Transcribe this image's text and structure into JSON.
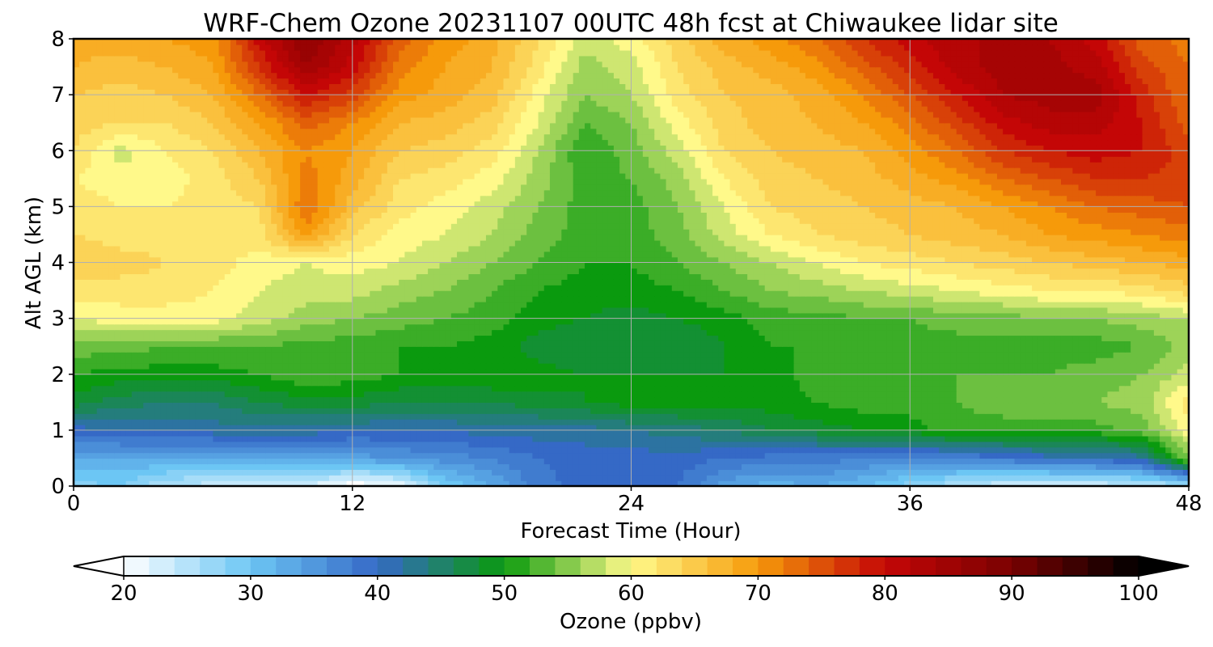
{
  "chart_data": {
    "type": "heatmap",
    "title": "WRF-Chem Ozone  20231107 00UTC 48h fcst at Chiwaukee lidar site",
    "xlabel": "Forecast Time (Hour)",
    "ylabel": "Alt AGL (km)",
    "xlim": [
      0,
      48
    ],
    "ylim": [
      0,
      8
    ],
    "x_ticks": [
      0,
      12,
      24,
      36,
      48
    ],
    "y_ticks": [
      0,
      1,
      2,
      3,
      4,
      5,
      6,
      7,
      8
    ],
    "grid": true,
    "colorbar": {
      "label": "Ozone  (ppbv)",
      "range": [
        20,
        100
      ],
      "ticks": [
        20,
        30,
        40,
        50,
        60,
        70,
        80,
        90,
        100
      ],
      "extend": "both",
      "colors": {
        "20": "#ffffff",
        "30": "#6cc6f4",
        "40": "#3569c6",
        "50": "#0a9a0e",
        "60": "#fff98a",
        "70": "#f69a0a",
        "80": "#c40606",
        "90": "#7a0101",
        "100": "#000000"
      }
    },
    "hours": [
      0,
      2,
      4,
      6,
      8,
      10,
      12,
      14,
      16,
      18,
      20,
      22,
      24,
      26,
      28,
      30,
      32,
      34,
      36,
      38,
      40,
      42,
      44,
      46,
      48
    ],
    "altitudes_km": [
      0,
      0.5,
      1,
      1.5,
      2,
      2.5,
      3,
      3.5,
      4,
      4.5,
      5,
      5.5,
      6,
      6.5,
      7,
      7.5,
      8
    ],
    "ozone_ppbv": [
      [
        28,
        29,
        25,
        24,
        24,
        23,
        19,
        21,
        29,
        33,
        38,
        40,
        40,
        39,
        34,
        32,
        33,
        31,
        28,
        25,
        23,
        22,
        23,
        24,
        25
      ],
      [
        33,
        33,
        33,
        32,
        33,
        34,
        34,
        35,
        36,
        37,
        39,
        40,
        40,
        40,
        39,
        38,
        38,
        37,
        36,
        37,
        38,
        40,
        40,
        42,
        55
      ],
      [
        40,
        41,
        41,
        42,
        42,
        42,
        41,
        41,
        41,
        42,
        42,
        42,
        43,
        44,
        45,
        47,
        48,
        49,
        50,
        52,
        52,
        52,
        52,
        54,
        60
      ],
      [
        48,
        46,
        45,
        45,
        47,
        48,
        48,
        47,
        47,
        47,
        48,
        49,
        50,
        50,
        50,
        50,
        51,
        52,
        52,
        53,
        54,
        55,
        55,
        56,
        62
      ],
      [
        51,
        50,
        50,
        50,
        51,
        53,
        52,
        51,
        50,
        51,
        50,
        49,
        49,
        49,
        49,
        50,
        52,
        52,
        52,
        53,
        53,
        53,
        54,
        55,
        58
      ],
      [
        54,
        54,
        53,
        53,
        53,
        52,
        52,
        51,
        51,
        50,
        48,
        47,
        47,
        47,
        49,
        51,
        51,
        52,
        52,
        52,
        52,
        52,
        52,
        53,
        56
      ],
      [
        59,
        60,
        60,
        60,
        58,
        56,
        55,
        54,
        53,
        52,
        50,
        49,
        48,
        49,
        50,
        52,
        52,
        53,
        53,
        54,
        54,
        55,
        55,
        56,
        57
      ],
      [
        62,
        62,
        62,
        61,
        59,
        58,
        58,
        56,
        55,
        53,
        51,
        50,
        50,
        51,
        53,
        55,
        56,
        57,
        58,
        59,
        60,
        61,
        61,
        62,
        64
      ],
      [
        65,
        64,
        63,
        62,
        60,
        59,
        60,
        59,
        57,
        55,
        53,
        51,
        51,
        53,
        55,
        57,
        59,
        61,
        62,
        63,
        64,
        65,
        66,
        67,
        68
      ],
      [
        63,
        62,
        62,
        62,
        62,
        70,
        63,
        60,
        59,
        57,
        54,
        52,
        52,
        54,
        58,
        61,
        63,
        64,
        65,
        66,
        67,
        69,
        70,
        71,
        72
      ],
      [
        62,
        61,
        61,
        62,
        63,
        73,
        66,
        62,
        60,
        58,
        55,
        52,
        52,
        55,
        59,
        63,
        64,
        65,
        66,
        67,
        69,
        71,
        73,
        74,
        75
      ],
      [
        61,
        60,
        60,
        62,
        65,
        72,
        68,
        63,
        62,
        60,
        56,
        52,
        53,
        56,
        61,
        64,
        65,
        66,
        68,
        70,
        73,
        75,
        77,
        77,
        76
      ],
      [
        63,
        58,
        61,
        63,
        67,
        71,
        69,
        65,
        64,
        62,
        57,
        51,
        54,
        58,
        63,
        65,
        66,
        67,
        70,
        73,
        77,
        79,
        80,
        79,
        76
      ],
      [
        64,
        63,
        63,
        65,
        69,
        74,
        71,
        67,
        66,
        64,
        59,
        53,
        55,
        60,
        64,
        66,
        67,
        69,
        72,
        76,
        80,
        82,
        82,
        79,
        74
      ],
      [
        65,
        64,
        65,
        67,
        73,
        79,
        76,
        70,
        68,
        66,
        60,
        55,
        57,
        62,
        65,
        66,
        68,
        71,
        75,
        79,
        83,
        84,
        84,
        78,
        73
      ],
      [
        67,
        66,
        67,
        69,
        77,
        85,
        80,
        72,
        69,
        67,
        62,
        56,
        58,
        63,
        66,
        68,
        70,
        74,
        78,
        82,
        84,
        84,
        82,
        76,
        73
      ],
      [
        68,
        68,
        69,
        70,
        80,
        87,
        82,
        74,
        70,
        68,
        63,
        58,
        60,
        64,
        68,
        70,
        73,
        77,
        80,
        83,
        83,
        83,
        80,
        74,
        72
      ]
    ]
  }
}
